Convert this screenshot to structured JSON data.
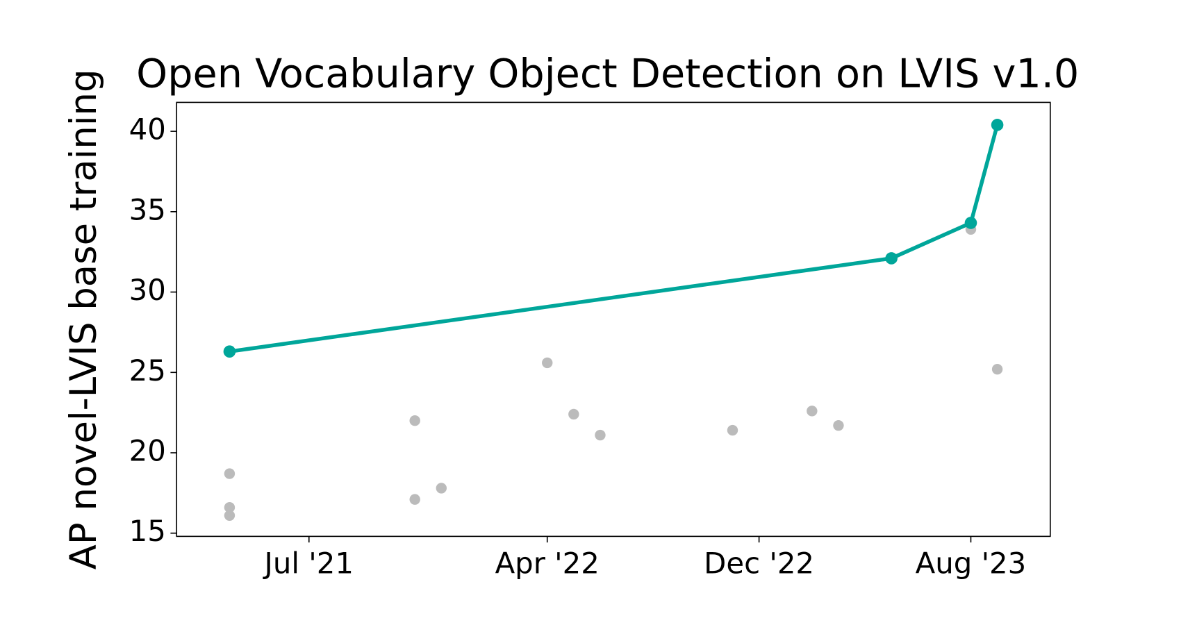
{
  "chart_data": {
    "type": "line",
    "title": "Open Vocabulary Object Detection on LVIS v1.0",
    "y_label": "AP novel-LVIS base training",
    "xlim": [
      "2021-02",
      "2023-11"
    ],
    "xticks": [
      {
        "value": "2021-07",
        "label": "Jul '21"
      },
      {
        "value": "2022-04",
        "label": "Apr '22"
      },
      {
        "value": "2022-12",
        "label": "Dec '22"
      },
      {
        "value": "2023-08",
        "label": "Aug '23"
      }
    ],
    "ylim": [
      14.8,
      41.8
    ],
    "yticks": [
      15,
      20,
      25,
      30,
      35,
      40
    ],
    "grid": false,
    "series": [
      {
        "style": "line",
        "color": "#00a69a",
        "x": [
          "2021-04",
          "2023-05",
          "2023-08",
          "2023-09"
        ],
        "values": [
          26.3,
          32.1,
          34.3,
          40.4
        ]
      },
      {
        "style": "scatter",
        "color": "#bbbbbb",
        "x": [
          "2021-04",
          "2021-04",
          "2021-04",
          "2021-11",
          "2021-11",
          "2021-12",
          "2022-04",
          "2022-05",
          "2022-06",
          "2022-11",
          "2023-02",
          "2023-03",
          "2023-08",
          "2023-09"
        ],
        "values": [
          18.7,
          16.6,
          16.1,
          22.0,
          17.1,
          17.8,
          25.6,
          22.4,
          21.1,
          21.4,
          22.6,
          21.7,
          33.9,
          25.2
        ]
      }
    ]
  }
}
